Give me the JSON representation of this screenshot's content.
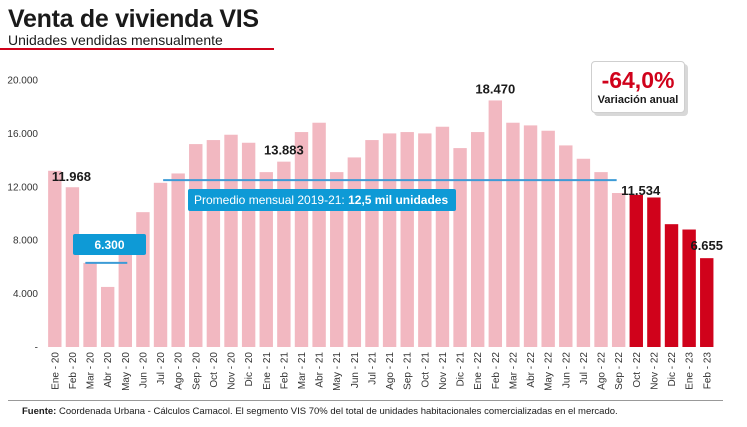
{
  "header": {
    "title": "Venta de vivienda VIS",
    "subtitle": "Unidades vendidas mensualmente"
  },
  "variation": {
    "value": "-64,0%",
    "label": "Variación anual"
  },
  "source": {
    "label": "Fuente:",
    "text": "Coordenada Urbana - Cálculos Camacol. El segmento VIS 70% del total de unidades habitacionales comercializadas en el mercado."
  },
  "colors": {
    "bar_light": "#f2b8c1",
    "bar_dark": "#d0021b",
    "average_line": "#3d9bd6",
    "average_box": "#0e9ad6",
    "accent": "#d0021b"
  },
  "chart_data": {
    "type": "bar",
    "ylim": [
      0,
      20000
    ],
    "yticks": [
      "-",
      "4.000",
      "8.000",
      "12.000",
      "16.000",
      "20.000"
    ],
    "ytick_values": [
      0,
      4000,
      8000,
      12000,
      16000,
      20000
    ],
    "grid": false,
    "categories": [
      "Ene - 20",
      "Feb - 20",
      "Mar - 20",
      "Abr - 20",
      "May - 20",
      "Jun - 20",
      "Jul - 20",
      "Ago - 20",
      "Sep - 20",
      "Oct - 20",
      "Nov - 20",
      "Dic - 20",
      "Ene - 21",
      "Feb - 21",
      "Mar - 21",
      "Abr - 21",
      "May - 21",
      "Jun - 21",
      "Jul - 21",
      "Ago - 21",
      "Sep - 21",
      "Oct - 21",
      "Nov - 21",
      "Dic - 21",
      "Ene - 22",
      "Feb - 22",
      "Mar - 22",
      "Abr - 22",
      "May - 22",
      "Jun - 22",
      "Jul - 22",
      "Ago - 22",
      "Sep - 22",
      "Oct - 22",
      "Nov - 22",
      "Dic - 22",
      "Ene - 23",
      "Feb - 23"
    ],
    "values": [
      13200,
      11968,
      6300,
      4500,
      7000,
      10100,
      12300,
      13000,
      15200,
      15500,
      15900,
      15300,
      13100,
      13883,
      16100,
      16800,
      13100,
      14200,
      15500,
      16000,
      16100,
      16000,
      16500,
      14900,
      16100,
      18470,
      16800,
      16600,
      16200,
      15100,
      14100,
      13100,
      11534,
      11400,
      11200,
      9200,
      8800,
      6655
    ],
    "highlight_from_index": 33,
    "data_labels": [
      {
        "index": 1,
        "text": "11.968"
      },
      {
        "index": 13,
        "text": "13.883"
      },
      {
        "index": 25,
        "text": "18.470"
      },
      {
        "index": 32,
        "text": "11.534"
      },
      {
        "index": 37,
        "text": "6.655"
      }
    ],
    "annotations": [
      {
        "type": "box",
        "text": "6.300",
        "value": 6300,
        "from_index": 2,
        "to_index": 4
      },
      {
        "type": "average",
        "text": "Promedio mensual 2019-21: ",
        "bold": "12,5 mil unidades",
        "value": 12500,
        "from_index": 7,
        "to_index": 32
      }
    ]
  }
}
